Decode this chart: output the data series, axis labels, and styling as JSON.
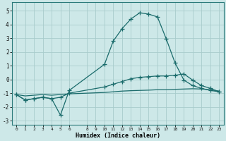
{
  "xlabel": "Humidex (Indice chaleur)",
  "bg_color": "#cde8e8",
  "grid_color": "#a8cccc",
  "line_color": "#1a6b6b",
  "xlim": [
    -0.5,
    23.5
  ],
  "ylim": [
    -3.3,
    5.6
  ],
  "yticks": [
    -3,
    -2,
    -1,
    0,
    1,
    2,
    3,
    4,
    5
  ],
  "xticks": [
    0,
    1,
    2,
    3,
    4,
    5,
    6,
    8,
    9,
    10,
    11,
    12,
    13,
    14,
    15,
    16,
    17,
    18,
    19,
    20,
    21,
    22,
    23
  ],
  "line1_x": [
    0,
    1,
    2,
    3,
    4,
    5,
    6,
    10,
    11,
    12,
    13,
    14,
    15,
    16,
    17,
    18,
    19,
    20,
    21,
    22,
    23
  ],
  "line1_y": [
    -1.1,
    -1.5,
    -1.4,
    -1.3,
    -1.4,
    -2.6,
    -0.8,
    1.1,
    2.8,
    3.7,
    4.4,
    4.85,
    4.75,
    4.55,
    2.95,
    1.2,
    -0.05,
    -0.45,
    -0.65,
    -0.8,
    -0.9
  ],
  "line2_x": [
    0,
    1,
    2,
    3,
    4,
    5,
    6,
    10,
    11,
    12,
    13,
    14,
    15,
    16,
    17,
    18,
    19,
    20,
    21,
    22,
    23
  ],
  "line2_y": [
    -1.1,
    -1.5,
    -1.4,
    -1.3,
    -1.4,
    -1.3,
    -1.0,
    -0.55,
    -0.35,
    -0.15,
    0.05,
    0.15,
    0.2,
    0.25,
    0.25,
    0.3,
    0.4,
    -0.05,
    -0.45,
    -0.65,
    -0.9
  ],
  "line3_x": [
    0,
    1,
    2,
    3,
    4,
    5,
    6,
    10,
    11,
    12,
    13,
    14,
    15,
    16,
    17,
    18,
    19,
    20,
    21,
    22,
    23
  ],
  "line3_y": [
    -1.1,
    -1.2,
    -1.15,
    -1.1,
    -1.15,
    -1.1,
    -1.05,
    -0.95,
    -0.9,
    -0.85,
    -0.82,
    -0.8,
    -0.78,
    -0.75,
    -0.75,
    -0.72,
    -0.7,
    -0.68,
    -0.7,
    -0.75,
    -0.85
  ]
}
